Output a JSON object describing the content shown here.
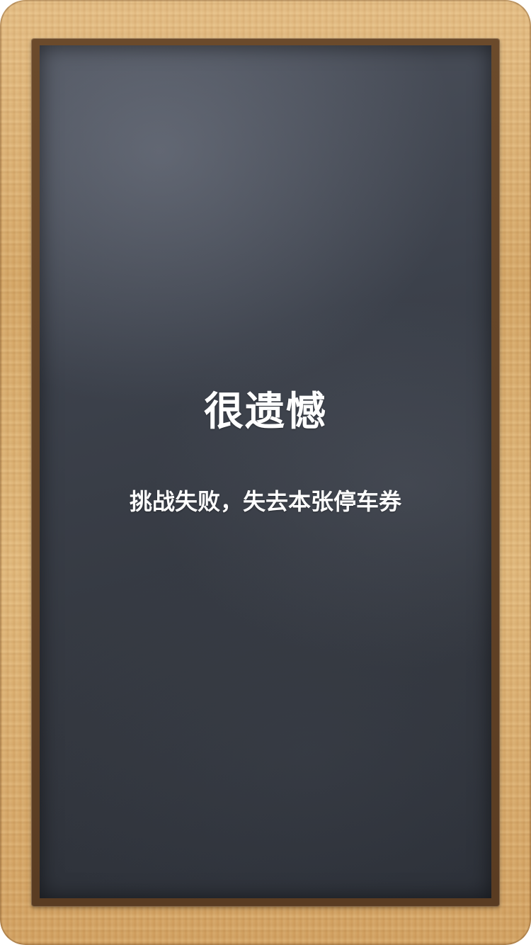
{
  "result": {
    "title": "很遗憾",
    "message": "挑战失败，失去本张停车券"
  },
  "colors": {
    "text": "#ffffff",
    "board": "#3c414b",
    "frame": "#d6a868"
  }
}
